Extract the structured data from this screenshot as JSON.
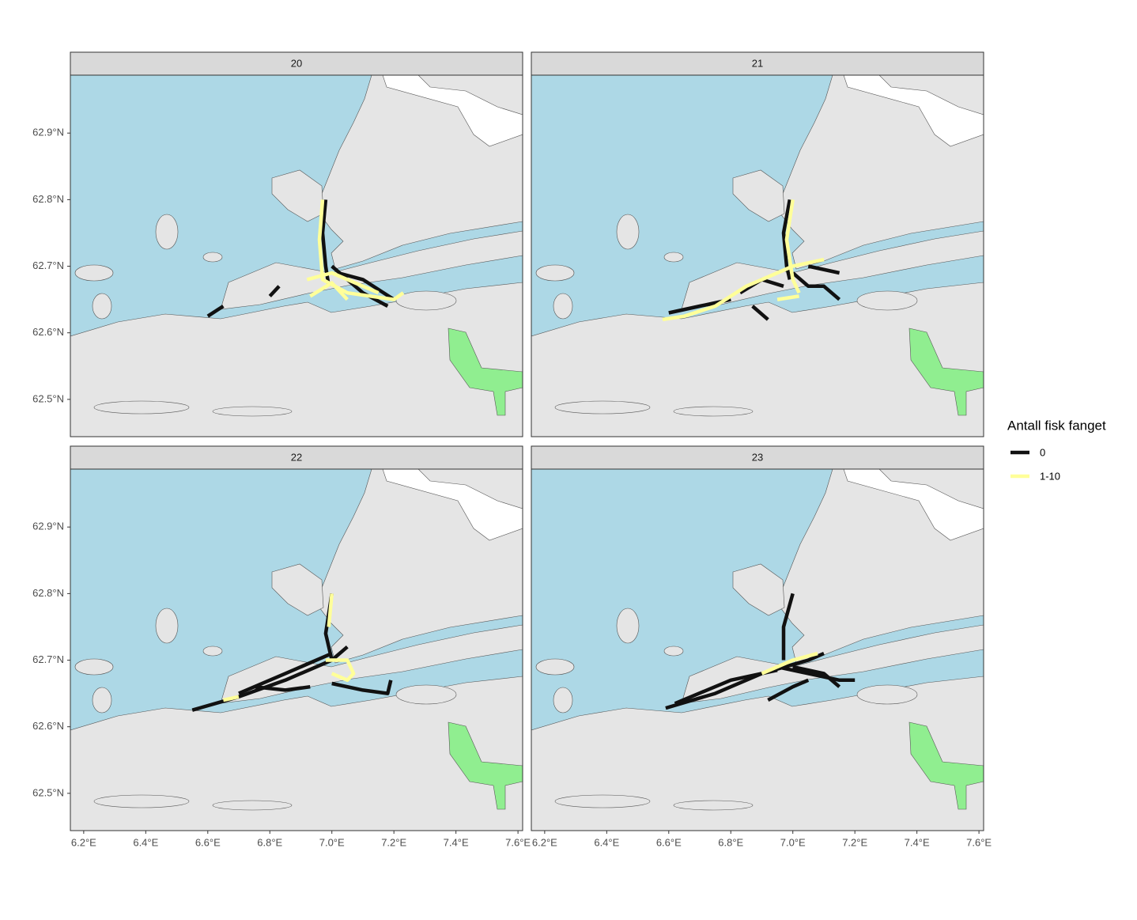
{
  "chart_data": {
    "type": "map-tracks",
    "legend_title": "Antall fisk fanget",
    "series": [
      {
        "name": "0",
        "color": "#111111"
      },
      {
        "name": "1-10",
        "color": "#ffff99"
      }
    ],
    "xlim": [
      6.157,
      7.615
    ],
    "ylim": [
      62.444,
      62.987
    ],
    "xticks": [
      {
        "value": 6.2,
        "label": "6.2°E"
      },
      {
        "value": 6.4,
        "label": "6.4°E"
      },
      {
        "value": 6.6,
        "label": "6.6°E"
      },
      {
        "value": 6.8,
        "label": "6.8°E"
      },
      {
        "value": 7.0,
        "label": "7.0°E"
      },
      {
        "value": 7.2,
        "label": "7.2°E"
      },
      {
        "value": 7.4,
        "label": "7.4°E"
      },
      {
        "value": 7.6,
        "label": "7.6°E"
      }
    ],
    "yticks": [
      {
        "value": 62.5,
        "label": "62.5°N"
      },
      {
        "value": 62.6,
        "label": "62.6°N"
      },
      {
        "value": 62.7,
        "label": "62.7°N"
      },
      {
        "value": 62.8,
        "label": "62.8°N"
      },
      {
        "value": 62.9,
        "label": "62.9°N"
      }
    ],
    "facets": [
      {
        "label": "20",
        "tracks": [
          [
            {
              "x": [
                6.6,
                6.65
              ],
              "y": [
                62.625,
                62.64
              ]
            },
            {
              "x": [
                6.8,
                6.83
              ],
              "y": [
                62.655,
                62.67
              ]
            },
            {
              "x": [
                6.98,
                6.97,
                6.98,
                6.99
              ],
              "y": [
                62.8,
                62.75,
                62.7,
                62.67
              ]
            },
            {
              "x": [
                7.0,
                7.05,
                7.1,
                7.18
              ],
              "y": [
                62.7,
                62.68,
                62.66,
                62.64
              ]
            },
            {
              "x": [
                7.02,
                7.1,
                7.2
              ],
              "y": [
                62.69,
                62.68,
                62.65
              ]
            }
          ],
          [
            {
              "x": [
                6.97,
                6.96,
                6.97,
                7.05,
                7.2,
                7.23
              ],
              "y": [
                62.8,
                62.74,
                62.68,
                62.66,
                62.65,
                62.66
              ]
            },
            {
              "x": [
                6.92,
                7.0,
                7.1,
                7.15
              ],
              "y": [
                62.68,
                62.69,
                62.67,
                62.66
              ]
            },
            {
              "x": [
                6.93,
                7.0,
                7.05
              ],
              "y": [
                62.655,
                62.675,
                62.65
              ]
            }
          ]
        ]
      },
      {
        "label": "21",
        "tracks": [
          [
            {
              "x": [
                6.99,
                6.97,
                6.98,
                6.99
              ],
              "y": [
                62.8,
                62.75,
                62.7,
                62.68
              ]
            },
            {
              "x": [
                6.6,
                6.7,
                6.8
              ],
              "y": [
                62.63,
                62.64,
                62.65
              ]
            },
            {
              "x": [
                6.87,
                6.92
              ],
              "y": [
                62.64,
                62.62
              ]
            },
            {
              "x": [
                6.97,
                6.9,
                6.83
              ],
              "y": [
                62.67,
                62.68,
                62.66
              ]
            },
            {
              "x": [
                7.0,
                7.05,
                7.1,
                7.15
              ],
              "y": [
                62.69,
                62.67,
                62.67,
                62.65
              ]
            },
            {
              "x": [
                7.05,
                7.15
              ],
              "y": [
                62.7,
                62.69
              ]
            }
          ],
          [
            {
              "x": [
                6.58,
                6.65,
                6.75,
                6.85,
                6.95,
                7.0,
                7.1
              ],
              "y": [
                62.62,
                62.625,
                62.64,
                62.67,
                62.69,
                62.7,
                62.71
              ]
            },
            {
              "x": [
                7.0,
                6.98,
                7.0,
                7.02
              ],
              "y": [
                62.8,
                62.74,
                62.68,
                62.66
              ]
            },
            {
              "x": [
                6.95,
                7.02
              ],
              "y": [
                62.65,
                62.655
              ]
            }
          ]
        ]
      },
      {
        "label": "22",
        "tracks": [
          [
            {
              "x": [
                6.55,
                6.7,
                6.85,
                7.0,
                7.05
              ],
              "y": [
                62.625,
                62.645,
                62.67,
                62.7,
                62.72
              ]
            },
            {
              "x": [
                7.0,
                6.98,
                7.0
              ],
              "y": [
                62.8,
                62.74,
                62.7
              ]
            },
            {
              "x": [
                6.75,
                6.85,
                6.93
              ],
              "y": [
                62.66,
                62.655,
                62.66
              ]
            },
            {
              "x": [
                7.0,
                7.1,
                7.18,
                7.19
              ],
              "y": [
                62.665,
                62.655,
                62.65,
                62.67
              ]
            },
            {
              "x": [
                6.7,
                6.85,
                7.0
              ],
              "y": [
                62.65,
                62.68,
                62.71
              ]
            }
          ],
          [
            {
              "x": [
                7.0,
                6.99
              ],
              "y": [
                62.8,
                62.75
              ]
            },
            {
              "x": [
                6.98,
                7.05,
                7.07,
                7.05,
                7.0
              ],
              "y": [
                62.7,
                62.7,
                62.68,
                62.67,
                62.68
              ]
            },
            {
              "x": [
                6.65,
                6.7
              ],
              "y": [
                62.64,
                62.645
              ]
            }
          ]
        ]
      },
      {
        "label": "23",
        "tracks": [
          [
            {
              "x": [
                6.59,
                6.75,
                6.9,
                7.05,
                7.1
              ],
              "y": [
                62.628,
                62.65,
                62.68,
                62.7,
                62.71
              ]
            },
            {
              "x": [
                7.0,
                6.97,
                6.97
              ],
              "y": [
                62.8,
                62.75,
                62.7
              ]
            },
            {
              "x": [
                6.62,
                6.8,
                6.95
              ],
              "y": [
                62.635,
                62.67,
                62.685
              ]
            },
            {
              "x": [
                6.95,
                7.05,
                7.15,
                7.2
              ],
              "y": [
                62.69,
                62.68,
                62.67,
                62.67
              ]
            },
            {
              "x": [
                6.92,
                7.0,
                7.05
              ],
              "y": [
                62.64,
                62.66,
                62.67
              ]
            },
            {
              "x": [
                7.0,
                7.1,
                7.15
              ],
              "y": [
                62.69,
                62.68,
                62.66
              ]
            }
          ],
          [
            {
              "x": [
                6.9,
                7.0,
                7.08
              ],
              "y": [
                62.68,
                62.7,
                62.71
              ]
            }
          ]
        ]
      }
    ]
  }
}
